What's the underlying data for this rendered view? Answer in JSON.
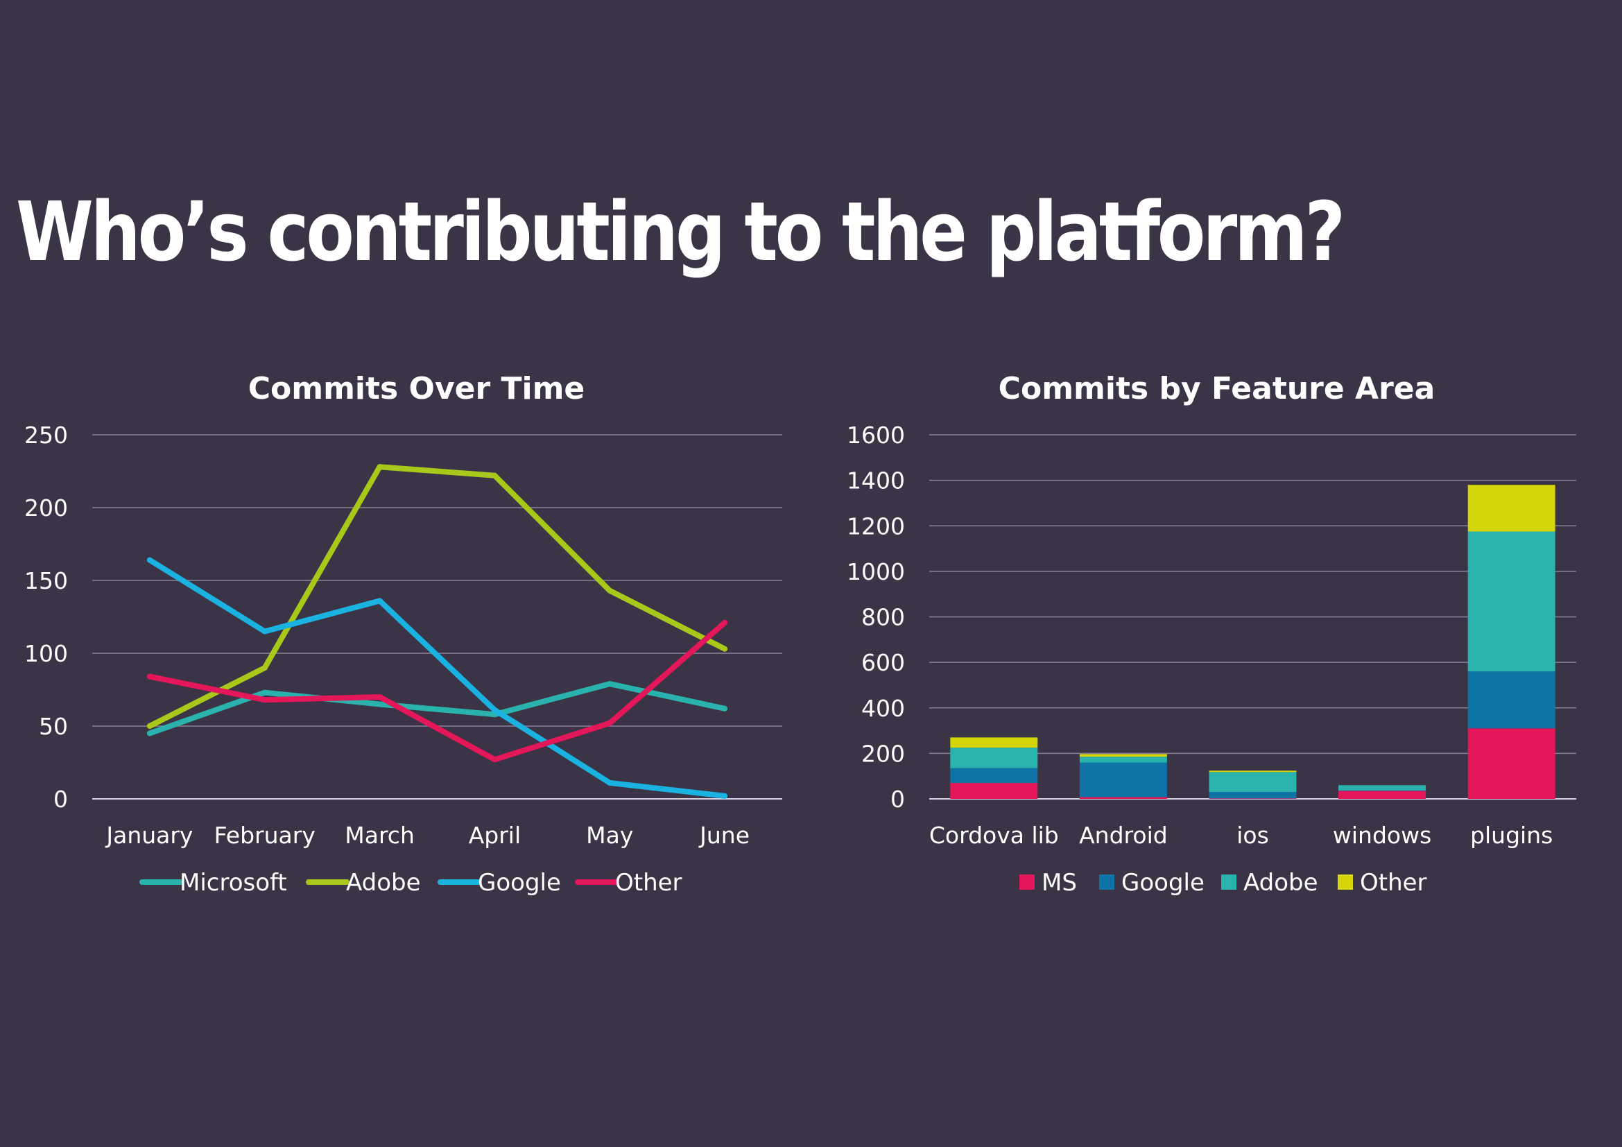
{
  "slide": {
    "title": "Who’s contributing to the platform?"
  },
  "chart_data": [
    {
      "type": "line",
      "title": "Commits Over Time",
      "categories": [
        "January",
        "February",
        "March",
        "April",
        "May",
        "June"
      ],
      "ylim": [
        0,
        250
      ],
      "yticks": [
        0,
        50,
        100,
        150,
        200,
        250
      ],
      "grid": true,
      "legend": "bottom",
      "series": [
        {
          "name": "Microsoft",
          "color": "#2ab3ad",
          "values": [
            45,
            73,
            65,
            58,
            79,
            62
          ]
        },
        {
          "name": "Adobe",
          "color": "#a8c81a",
          "values": [
            50,
            90,
            228,
            222,
            143,
            103
          ]
        },
        {
          "name": "Google",
          "color": "#1ab2e0",
          "values": [
            164,
            115,
            136,
            61,
            11,
            2
          ]
        },
        {
          "name": "Other",
          "color": "#e3175a",
          "values": [
            84,
            68,
            70,
            27,
            52,
            121
          ]
        }
      ]
    },
    {
      "type": "bar",
      "stacked": true,
      "title": "Commits by Feature Area",
      "categories": [
        "Cordova lib",
        "Android",
        "ios",
        "windows",
        "plugins"
      ],
      "ylim": [
        0,
        1600
      ],
      "yticks": [
        0,
        200,
        400,
        600,
        800,
        1000,
        1200,
        1400,
        1600
      ],
      "grid": true,
      "legend": "bottom",
      "series": [
        {
          "name": "MS",
          "color": "#e3175a",
          "values": [
            70,
            8,
            2,
            35,
            310
          ]
        },
        {
          "name": "Google",
          "color": "#0e73a5",
          "values": [
            65,
            152,
            28,
            2,
            250
          ]
        },
        {
          "name": "Adobe",
          "color": "#2ab3ad",
          "values": [
            90,
            25,
            88,
            23,
            615
          ]
        },
        {
          "name": "Other",
          "color": "#d4d60a",
          "values": [
            45,
            12,
            6,
            0,
            205
          ]
        }
      ]
    }
  ]
}
